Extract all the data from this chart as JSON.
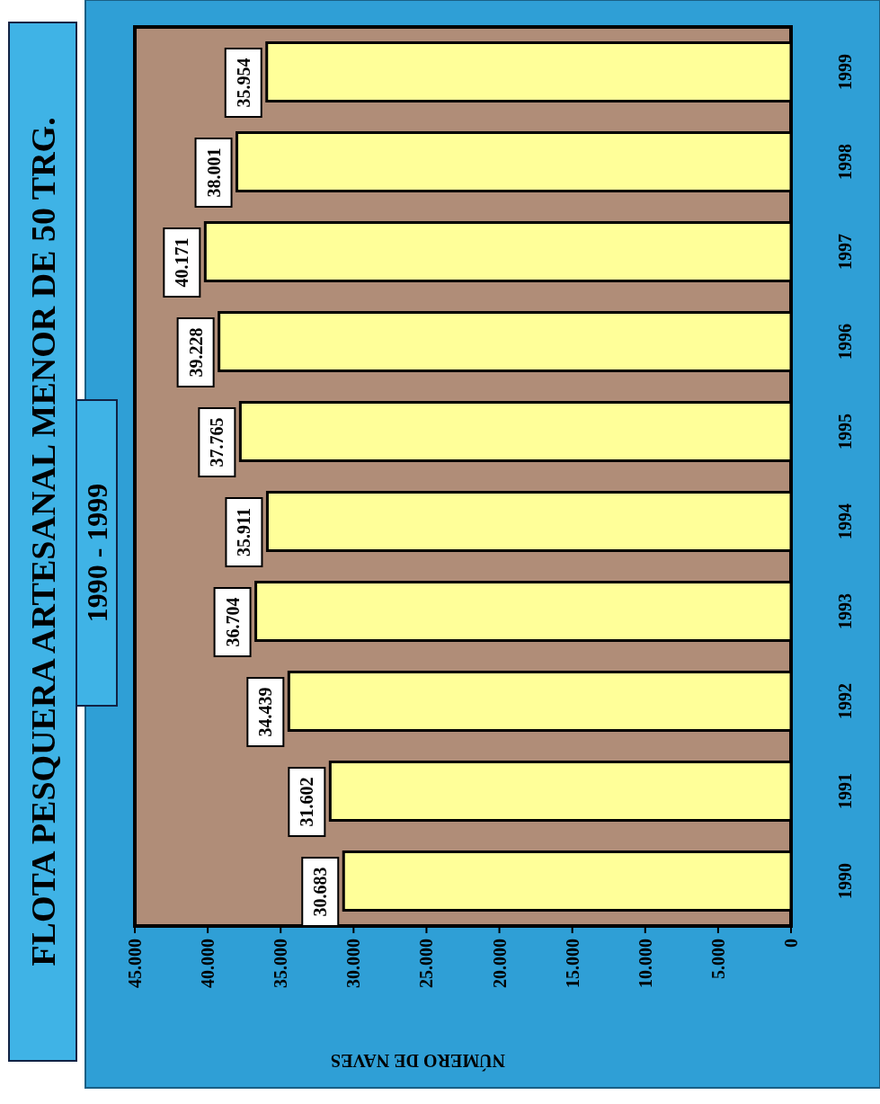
{
  "chart_data": {
    "type": "bar",
    "orientation": "horizontal",
    "title": "FLOTA PESQUERA ARTESANAL MENOR DE 50 TRG.",
    "subtitle": "1990 - 1999",
    "xlabel": "NÚMERO DE NAVES",
    "categories": [
      "1999",
      "1998",
      "1997",
      "1996",
      "1995",
      "1994",
      "1993",
      "1992",
      "1991",
      "1990"
    ],
    "values": [
      35954,
      38001,
      40171,
      39228,
      37765,
      35911,
      36704,
      34439,
      31602,
      30683
    ],
    "value_labels": [
      "35.954",
      "38.001",
      "40.171",
      "39.228",
      "37.765",
      "35.911",
      "36.704",
      "34.439",
      "31.602",
      "30.683"
    ],
    "color": "#ffff99",
    "xlim": [
      45000,
      0
    ],
    "xticks": [
      {
        "value": 45000,
        "label": "45.000"
      },
      {
        "value": 40000,
        "label": "40.000"
      },
      {
        "value": 35000,
        "label": "35.000"
      },
      {
        "value": 30000,
        "label": "30.000"
      },
      {
        "value": 25000,
        "label": "25.000"
      },
      {
        "value": 20000,
        "label": "20.000"
      },
      {
        "value": 15000,
        "label": "15.000"
      },
      {
        "value": 10000,
        "label": "10.000"
      },
      {
        "value": 5000,
        "label": "5.000"
      },
      {
        "value": 0,
        "label": "0"
      }
    ]
  }
}
